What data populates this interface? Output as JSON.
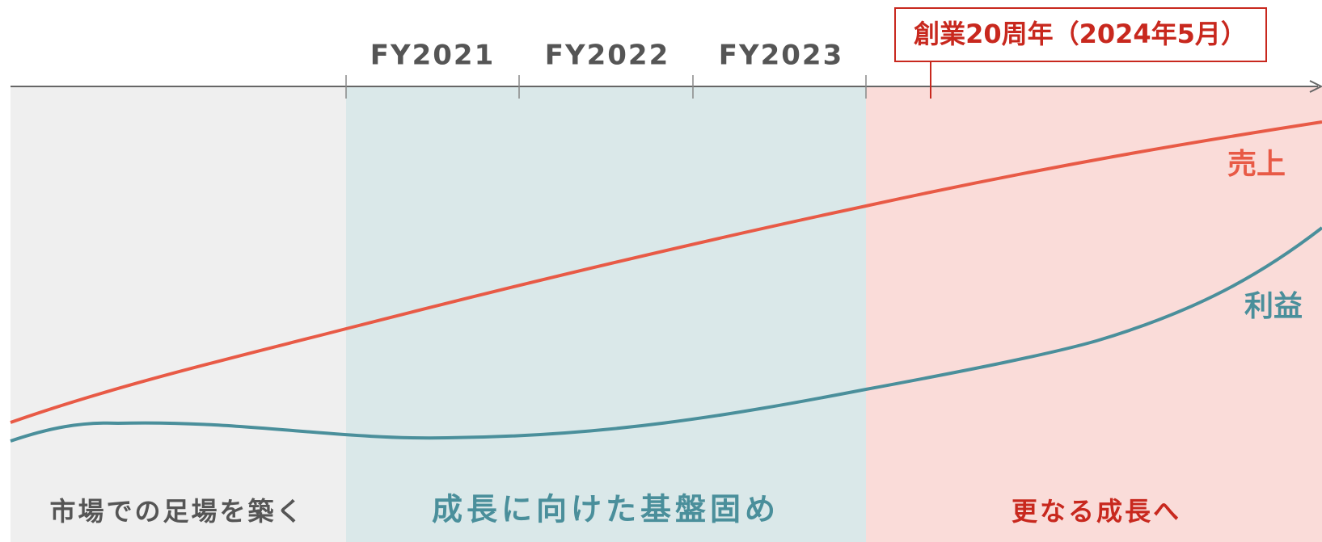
{
  "timeline": {
    "fiscal_years": [
      "FY2021",
      "FY2022",
      "FY2023"
    ],
    "milestone": "創業20周年（2024年5月）",
    "lines": {
      "sales": "売上",
      "profit": "利益"
    },
    "phases": [
      "市場での足場を築く",
      "成長に向けた基盤固め",
      "更なる成長へ"
    ]
  }
}
